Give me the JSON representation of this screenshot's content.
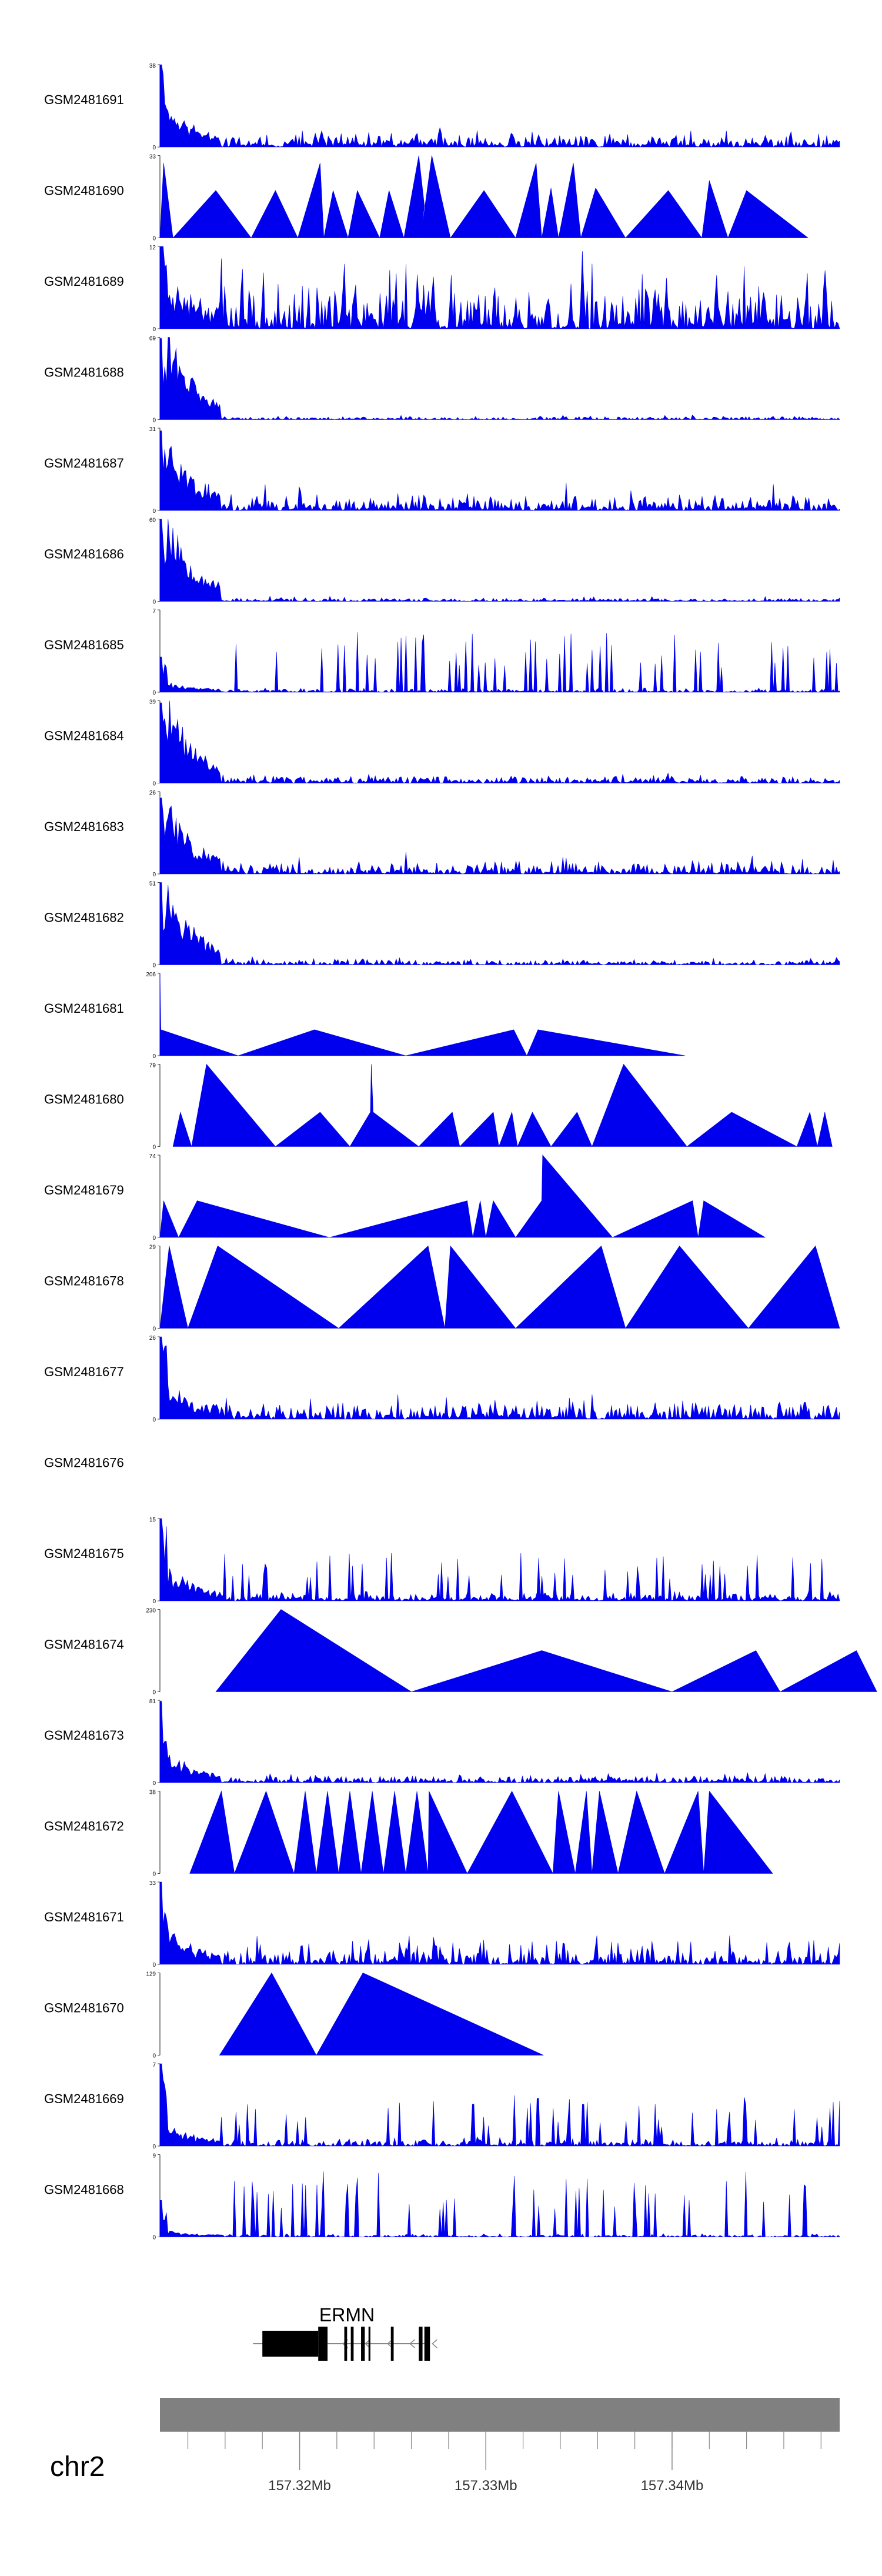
{
  "chart_data": {
    "type": "area",
    "title": "",
    "x_range_mb": [
      157.3125,
      157.349
    ],
    "x_ticks": [
      {
        "value": 157.32,
        "label": "157.32Mb"
      },
      {
        "value": 157.33,
        "label": "157.33Mb"
      },
      {
        "value": 157.34,
        "label": "157.34Mb"
      }
    ],
    "minor_tick_step_mb": 0.002,
    "chromosome": "chr2",
    "gene": {
      "name": "ERMN",
      "start_mb": 157.3175,
      "end_mb": 157.327,
      "exons": [
        {
          "start": 157.318,
          "end": 157.321,
          "tall": false
        },
        {
          "start": 157.321,
          "end": 157.3215,
          "tall": true
        },
        {
          "start": 157.3224,
          "end": 157.32255,
          "tall": true
        },
        {
          "start": 157.32275,
          "end": 157.3229,
          "tall": true
        },
        {
          "start": 157.3233,
          "end": 157.3235,
          "tall": true
        },
        {
          "start": 157.3237,
          "end": 157.3238,
          "tall": true
        },
        {
          "start": 157.3249,
          "end": 157.32505,
          "tall": true
        },
        {
          "start": 157.3264,
          "end": 157.3266,
          "tall": true
        },
        {
          "start": 157.3267,
          "end": 157.327,
          "tall": true
        }
      ]
    },
    "series": [
      {
        "name": "GSM2481691",
        "ymax": 38,
        "style": "dense",
        "peak": 38,
        "front": 0.6,
        "base": 4,
        "spike": 2,
        "seed": 11
      },
      {
        "name": "GSM2481690",
        "ymax": 33,
        "style": "sparse",
        "points": [
          [
            157.3125,
            0
          ],
          [
            157.3127,
            30
          ],
          [
            157.3132,
            0
          ],
          [
            157.3155,
            19
          ],
          [
            157.3174,
            0
          ],
          [
            157.3187,
            19
          ],
          [
            157.3199,
            0
          ],
          [
            157.3211,
            30
          ],
          [
            157.3213,
            0
          ],
          [
            157.3218,
            19
          ],
          [
            157.3226,
            0
          ],
          [
            157.3231,
            19
          ],
          [
            157.3243,
            0
          ],
          [
            157.3248,
            19
          ],
          [
            157.3256,
            0
          ],
          [
            157.3264,
            33
          ],
          [
            157.3267,
            13
          ],
          [
            157.3265,
            0
          ],
          [
            157.3271,
            33
          ],
          [
            157.3281,
            0
          ],
          [
            157.3299,
            19
          ],
          [
            157.3316,
            0
          ],
          [
            157.3327,
            30
          ],
          [
            157.333,
            0
          ],
          [
            157.3335,
            20
          ],
          [
            157.3339,
            0
          ],
          [
            157.3347,
            30
          ],
          [
            157.3351,
            0
          ],
          [
            157.3359,
            20
          ],
          [
            157.3375,
            0
          ],
          [
            157.3398,
            19
          ],
          [
            157.3416,
            0
          ],
          [
            157.342,
            23
          ],
          [
            157.343,
            0
          ],
          [
            157.344,
            19
          ],
          [
            157.3473,
            0
          ]
        ]
      },
      {
        "name": "GSM2481689",
        "ymax": 12,
        "style": "dense",
        "peak": 12,
        "front": 0.5,
        "base": 3.5,
        "spike": 6,
        "seed": 23
      },
      {
        "name": "GSM2481688",
        "ymax": 69,
        "style": "dense",
        "peak": 68,
        "front": 1.5,
        "base": 1.5,
        "spike": 2,
        "seed": 31
      },
      {
        "name": "GSM2481687",
        "ymax": 31,
        "style": "dense",
        "peak": 30,
        "front": 1.2,
        "base": 3,
        "spike": 5,
        "seed": 43
      },
      {
        "name": "GSM2481686",
        "ymax": 60,
        "style": "dense",
        "peak": 60,
        "front": 1.5,
        "base": 1.5,
        "spike": 2,
        "seed": 53
      },
      {
        "name": "GSM2481685",
        "ymax": 7,
        "style": "dense",
        "peak": 3,
        "front": 0.3,
        "base": 0.2,
        "spike": 5,
        "seed": 61
      },
      {
        "name": "GSM2481684",
        "ymax": 39,
        "style": "dense",
        "peak": 38,
        "front": 1.4,
        "base": 2,
        "spike": 2,
        "seed": 71
      },
      {
        "name": "GSM2481683",
        "ymax": 26,
        "style": "dense",
        "peak": 24,
        "front": 1.3,
        "base": 2,
        "spike": 4,
        "seed": 83
      },
      {
        "name": "GSM2481682",
        "ymax": 51,
        "style": "dense",
        "peak": 51,
        "front": 1.4,
        "base": 2,
        "spike": 2,
        "seed": 97
      },
      {
        "name": "GSM2481681",
        "ymax": 206,
        "style": "sparse",
        "points": [
          [
            157.3125,
            206
          ],
          [
            157.31255,
            65
          ],
          [
            157.3167,
            0
          ],
          [
            157.3208,
            65
          ],
          [
            157.3257,
            0
          ],
          [
            157.3315,
            65
          ],
          [
            157.3322,
            0
          ],
          [
            157.3328,
            65
          ],
          [
            157.3407,
            0
          ]
        ]
      },
      {
        "name": "GSM2481680",
        "ymax": 79,
        "style": "sparse",
        "points": [
          [
            157.3132,
            0
          ],
          [
            157.3136,
            33
          ],
          [
            157.3142,
            0
          ],
          [
            157.315,
            79
          ],
          [
            157.3187,
            0
          ],
          [
            157.3211,
            33
          ],
          [
            157.3227,
            0
          ],
          [
            157.3238,
            33
          ],
          [
            157.32385,
            79
          ],
          [
            157.32395,
            33
          ],
          [
            157.3264,
            0
          ],
          [
            157.3282,
            33
          ],
          [
            157.3286,
            0
          ],
          [
            157.3304,
            33
          ],
          [
            157.3307,
            0
          ],
          [
            157.3314,
            33
          ],
          [
            157.3317,
            0
          ],
          [
            157.3325,
            33
          ],
          [
            157.3335,
            0
          ],
          [
            157.3349,
            33
          ],
          [
            157.3357,
            0
          ],
          [
            157.3374,
            79
          ],
          [
            157.3408,
            0
          ],
          [
            157.3432,
            33
          ],
          [
            157.3467,
            0
          ],
          [
            157.3474,
            33
          ],
          [
            157.3478,
            0
          ],
          [
            157.3482,
            33
          ],
          [
            157.3486,
            0
          ]
        ]
      },
      {
        "name": "GSM2481679",
        "ymax": 74,
        "style": "sparse",
        "points": [
          [
            157.3125,
            0
          ],
          [
            157.3127,
            33
          ],
          [
            157.3135,
            0
          ],
          [
            157.3145,
            33
          ],
          [
            157.3216,
            0
          ],
          [
            157.329,
            33
          ],
          [
            157.3293,
            0
          ],
          [
            157.3297,
            33
          ],
          [
            157.33,
            0
          ],
          [
            157.3304,
            33
          ],
          [
            157.3316,
            0
          ],
          [
            157.333,
            33
          ],
          [
            157.33305,
            74
          ],
          [
            157.3368,
            0
          ],
          [
            157.3411,
            33
          ],
          [
            157.3414,
            0
          ],
          [
            157.3417,
            33
          ],
          [
            157.345,
            0
          ]
        ]
      },
      {
        "name": "GSM2481678",
        "ymax": 29,
        "style": "sparse",
        "points": [
          [
            157.3125,
            0
          ],
          [
            157.313,
            29
          ],
          [
            157.314,
            0
          ],
          [
            157.3156,
            29
          ],
          [
            157.3221,
            0
          ],
          [
            157.3269,
            29
          ],
          [
            157.3278,
            0
          ],
          [
            157.3281,
            29
          ],
          [
            157.3316,
            0
          ],
          [
            157.3362,
            29
          ],
          [
            157.3375,
            0
          ],
          [
            157.3404,
            29
          ],
          [
            157.3441,
            0
          ],
          [
            157.3477,
            29
          ],
          [
            157.349,
            0
          ]
        ]
      },
      {
        "name": "GSM2481677",
        "ymax": 26,
        "style": "dense",
        "peak": 26,
        "front": 0.5,
        "base": 3,
        "spike": 4,
        "seed": 101
      },
      {
        "name": "GSM2481676",
        "ymax": 0,
        "style": "empty"
      },
      {
        "name": "GSM2481675",
        "ymax": 15,
        "style": "dense",
        "peak": 15,
        "front": 0.5,
        "base": 1,
        "spike": 8,
        "seed": 113
      },
      {
        "name": "GSM2481674",
        "ymax": 230,
        "style": "sparse",
        "points": [
          [
            157.3155,
            0
          ],
          [
            157.319,
            230
          ],
          [
            157.326,
            0
          ],
          [
            157.333,
            115
          ],
          [
            157.34,
            0
          ],
          [
            157.3445,
            115
          ],
          [
            157.3458,
            0
          ],
          [
            157.3499,
            115
          ],
          [
            157.351,
            0
          ]
        ]
      },
      {
        "name": "GSM2481673",
        "ymax": 81,
        "style": "dense",
        "peak": 80,
        "front": 0.5,
        "base": 4,
        "spike": 6,
        "seed": 127
      },
      {
        "name": "GSM2481672",
        "ymax": 38,
        "style": "sparse",
        "points": [
          [
            157.3141,
            0
          ],
          [
            157.3158,
            38
          ],
          [
            157.3165,
            0
          ],
          [
            157.3182,
            38
          ],
          [
            157.3197,
            0
          ],
          [
            157.3203,
            38
          ],
          [
            157.3209,
            0
          ],
          [
            157.3215,
            38
          ],
          [
            157.3221,
            0
          ],
          [
            157.3227,
            38
          ],
          [
            157.3233,
            0
          ],
          [
            157.3239,
            38
          ],
          [
            157.3245,
            0
          ],
          [
            157.3251,
            38
          ],
          [
            157.3257,
            0
          ],
          [
            157.3263,
            38
          ],
          [
            157.3269,
            0
          ],
          [
            157.32695,
            38
          ],
          [
            157.329,
            0
          ],
          [
            157.3314,
            38
          ],
          [
            157.3336,
            0
          ],
          [
            157.3339,
            38
          ],
          [
            157.3348,
            0
          ],
          [
            157.3354,
            38
          ],
          [
            157.3357,
            0
          ],
          [
            157.3361,
            38
          ],
          [
            157.3371,
            0
          ],
          [
            157.3381,
            38
          ],
          [
            157.3396,
            0
          ],
          [
            157.3414,
            38
          ],
          [
            157.3417,
            0
          ],
          [
            157.342,
            38
          ],
          [
            157.3454,
            0
          ]
        ]
      },
      {
        "name": "GSM2481671",
        "ymax": 33,
        "style": "dense",
        "peak": 33,
        "front": 0.5,
        "base": 3,
        "spike": 9,
        "seed": 139
      },
      {
        "name": "GSM2481670",
        "ymax": 129,
        "style": "sparse",
        "points": [
          [
            157.3157,
            0
          ],
          [
            157.3185,
            129
          ],
          [
            157.3209,
            0
          ],
          [
            157.3234,
            129
          ],
          [
            157.3331,
            0
          ]
        ]
      },
      {
        "name": "GSM2481669",
        "ymax": 7,
        "style": "dense",
        "peak": 7,
        "front": 0.3,
        "base": 0.4,
        "spike": 4,
        "seed": 149
      },
      {
        "name": "GSM2481668",
        "ymax": 9,
        "style": "dense",
        "peak": 4,
        "front": 0.2,
        "base": 0.2,
        "spike": 7,
        "seed": 157
      }
    ]
  }
}
